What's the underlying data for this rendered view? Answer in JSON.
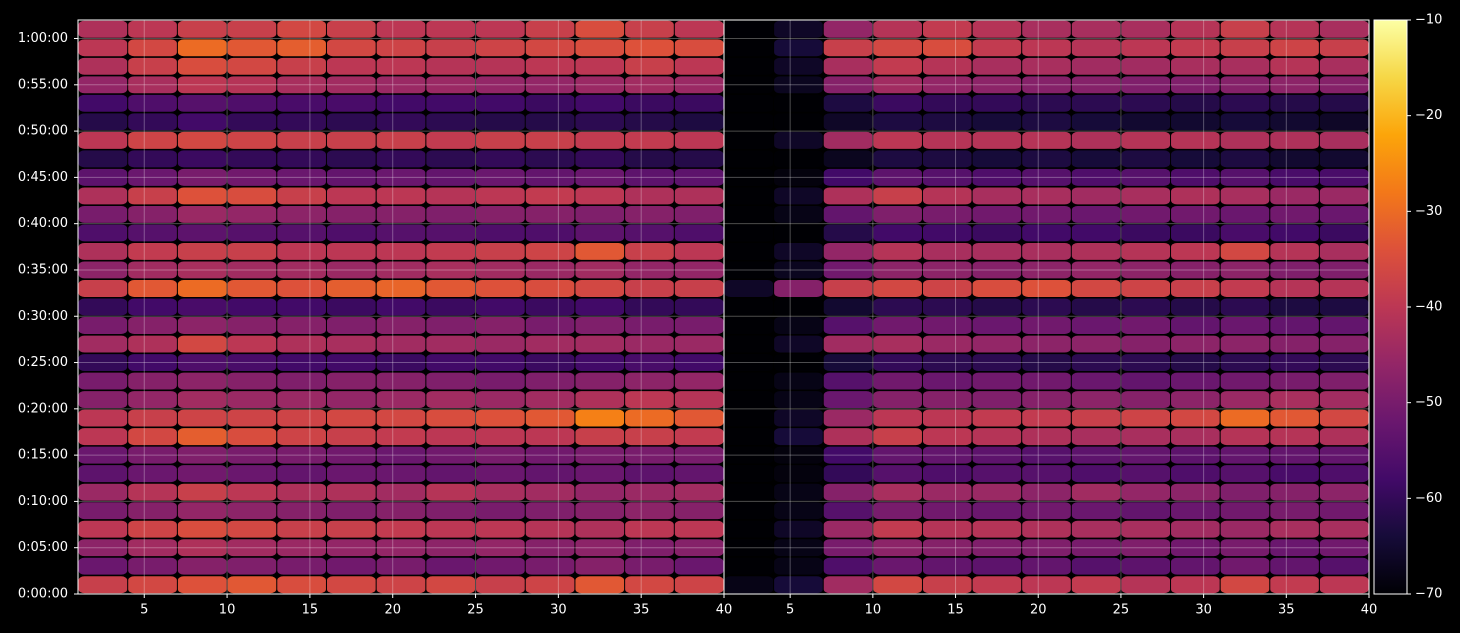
{
  "chart_data": {
    "type": "heatmap",
    "colormap": "inferno",
    "grid": true,
    "ylim": [
      0,
      3720
    ],
    "yticks": [
      {
        "value": 0,
        "label": "0:00:00"
      },
      {
        "value": 300,
        "label": "0:05:00"
      },
      {
        "value": 600,
        "label": "0:10:00"
      },
      {
        "value": 900,
        "label": "0:15:00"
      },
      {
        "value": 1200,
        "label": "0:20:00"
      },
      {
        "value": 1500,
        "label": "0:25:00"
      },
      {
        "value": 1800,
        "label": "0:30:00"
      },
      {
        "value": 2100,
        "label": "0:35:00"
      },
      {
        "value": 2400,
        "label": "0:40:00"
      },
      {
        "value": 2700,
        "label": "0:45:00"
      },
      {
        "value": 3000,
        "label": "0:50:00"
      },
      {
        "value": 3300,
        "label": "0:55:00"
      },
      {
        "value": 3600,
        "label": "1:00:00"
      }
    ],
    "y_edges": [
      0,
      120,
      240,
      360,
      480,
      600,
      720,
      840,
      960,
      1080,
      1200,
      1320,
      1440,
      1560,
      1680,
      1800,
      1920,
      2040,
      2160,
      2280,
      2400,
      2520,
      2640,
      2760,
      2880,
      3000,
      3120,
      3240,
      3360,
      3480,
      3600,
      3720
    ],
    "clim": [
      -70,
      -10
    ],
    "cticks": [
      {
        "value": -70,
        "label": "−70"
      },
      {
        "value": -60,
        "label": "−60"
      },
      {
        "value": -50,
        "label": "−50"
      },
      {
        "value": -40,
        "label": "−40"
      },
      {
        "value": -30,
        "label": "−30"
      },
      {
        "value": -20,
        "label": "−20"
      },
      {
        "value": -10,
        "label": "−10"
      }
    ],
    "panels": [
      {
        "xlim": [
          1,
          40
        ],
        "xticks": [
          5,
          10,
          15,
          20,
          25,
          30,
          35,
          40
        ],
        "x_edges": [
          1,
          4,
          7,
          10,
          13,
          16,
          19,
          22,
          25,
          28,
          31,
          34,
          37,
          40
        ],
        "values": [
          [
            -38,
            -36,
            -34,
            -33,
            -35,
            -36,
            -37,
            -36,
            -38,
            -37,
            -33,
            -36,
            -37
          ],
          [
            -52,
            -50,
            -48,
            -49,
            -50,
            -51,
            -50,
            -52,
            -51,
            -50,
            -48,
            -50,
            -52
          ],
          [
            -47,
            -44,
            -42,
            -44,
            -45,
            -46,
            -46,
            -47,
            -46,
            -48,
            -47,
            -49,
            -48
          ],
          [
            -40,
            -37,
            -35,
            -36,
            -38,
            -38,
            -39,
            -40,
            -40,
            -41,
            -42,
            -40,
            -40
          ],
          [
            -50,
            -48,
            -46,
            -47,
            -48,
            -49,
            -48,
            -49,
            -50,
            -49,
            -48,
            -47,
            -48
          ],
          [
            -45,
            -41,
            -38,
            -40,
            -42,
            -42,
            -44,
            -41,
            -43,
            -44,
            -46,
            -45,
            -44
          ],
          [
            -54,
            -52,
            -51,
            -52,
            -53,
            -52,
            -52,
            -53,
            -52,
            -53,
            -52,
            -54,
            -53
          ],
          [
            -52,
            -50,
            -49,
            -50,
            -50,
            -51,
            -52,
            -51,
            -50,
            -51,
            -50,
            -50,
            -50
          ],
          [
            -40,
            -36,
            -32,
            -35,
            -37,
            -38,
            -39,
            -40,
            -40,
            -40,
            -38,
            -38,
            -39
          ],
          [
            -40,
            -38,
            -37,
            -37,
            -37,
            -36,
            -36,
            -35,
            -34,
            -33,
            -27,
            -30,
            -33
          ],
          [
            -48,
            -46,
            -44,
            -45,
            -45,
            -46,
            -45,
            -44,
            -45,
            -44,
            -42,
            -40,
            -41
          ],
          [
            -50,
            -48,
            -47,
            -48,
            -49,
            -48,
            -48,
            -49,
            -50,
            -49,
            -48,
            -47,
            -46
          ],
          [
            -60,
            -58,
            -56,
            -57,
            -58,
            -58,
            -59,
            -58,
            -58,
            -59,
            -58,
            -57,
            -58
          ],
          [
            -44,
            -42,
            -36,
            -40,
            -42,
            -43,
            -44,
            -44,
            -45,
            -44,
            -44,
            -45,
            -45
          ],
          [
            -50,
            -48,
            -47,
            -48,
            -48,
            -49,
            -48,
            -49,
            -48,
            -50,
            -49,
            -50,
            -50
          ],
          [
            -60,
            -58,
            -57,
            -58,
            -58,
            -59,
            -58,
            -59,
            -58,
            -59,
            -58,
            -60,
            -60
          ],
          [
            -38,
            -33,
            -30,
            -33,
            -34,
            -32,
            -31,
            -33,
            -34,
            -35,
            -36,
            -38,
            -38
          ],
          [
            -47,
            -44,
            -43,
            -44,
            -44,
            -45,
            -44,
            -43,
            -44,
            -45,
            -44,
            -46,
            -46
          ],
          [
            -42,
            -39,
            -38,
            -38,
            -40,
            -40,
            -40,
            -39,
            -38,
            -37,
            -33,
            -38,
            -40
          ],
          [
            -56,
            -55,
            -54,
            -55,
            -55,
            -56,
            -55,
            -55,
            -56,
            -56,
            -54,
            -55,
            -56
          ],
          [
            -50,
            -48,
            -45,
            -46,
            -47,
            -48,
            -48,
            -49,
            -48,
            -48,
            -49,
            -48,
            -49
          ],
          [
            -42,
            -38,
            -34,
            -35,
            -38,
            -40,
            -40,
            -41,
            -40,
            -39,
            -40,
            -42,
            -42
          ],
          [
            -54,
            -52,
            -50,
            -51,
            -52,
            -53,
            -52,
            -53,
            -52,
            -53,
            -52,
            -54,
            -54
          ],
          [
            -62,
            -60,
            -59,
            -60,
            -60,
            -61,
            -60,
            -61,
            -60,
            -61,
            -60,
            -62,
            -62
          ],
          [
            -40,
            -37,
            -36,
            -37,
            -38,
            -38,
            -38,
            -39,
            -38,
            -38,
            -39,
            -39,
            -40
          ],
          [
            -62,
            -60,
            -58,
            -60,
            -60,
            -61,
            -60,
            -61,
            -62,
            -62,
            -61,
            -62,
            -63
          ],
          [
            -58,
            -56,
            -55,
            -56,
            -57,
            -57,
            -58,
            -58,
            -58,
            -59,
            -58,
            -59,
            -59
          ],
          [
            -46,
            -43,
            -40,
            -41,
            -43,
            -44,
            -45,
            -45,
            -46,
            -46,
            -45,
            -44,
            -45
          ],
          [
            -42,
            -38,
            -35,
            -36,
            -38,
            -40,
            -40,
            -41,
            -41,
            -40,
            -40,
            -38,
            -40
          ],
          [
            -40,
            -36,
            -30,
            -33,
            -32,
            -36,
            -37,
            -38,
            -37,
            -36,
            -35,
            -34,
            -35
          ],
          [
            -42,
            -40,
            -38,
            -38,
            -36,
            -38,
            -40,
            -40,
            -40,
            -38,
            -35,
            -38,
            -40
          ]
        ]
      },
      {
        "xlim": [
          1,
          40
        ],
        "xticks": [
          5,
          10,
          15,
          20,
          25,
          30,
          35,
          40
        ],
        "x_edges": [
          1,
          4,
          7,
          10,
          13,
          16,
          19,
          22,
          25,
          28,
          31,
          34,
          37,
          40
        ],
        "values": [
          [
            -68,
            -64,
            -44,
            -36,
            -38,
            -39,
            -40,
            -39,
            -41,
            -40,
            -36,
            -39,
            -40
          ],
          [
            -70,
            -68,
            -56,
            -52,
            -53,
            -54,
            -53,
            -55,
            -54,
            -53,
            -51,
            -53,
            -55
          ],
          [
            -70,
            -68,
            -50,
            -47,
            -48,
            -49,
            -49,
            -50,
            -49,
            -51,
            -50,
            -52,
            -51
          ],
          [
            -70,
            -66,
            -45,
            -39,
            -41,
            -41,
            -42,
            -43,
            -43,
            -44,
            -45,
            -43,
            -43
          ],
          [
            -70,
            -68,
            -55,
            -50,
            -51,
            -52,
            -51,
            -52,
            -53,
            -52,
            -51,
            -50,
            -51
          ],
          [
            -70,
            -68,
            -48,
            -43,
            -45,
            -45,
            -47,
            -44,
            -46,
            -47,
            -49,
            -48,
            -47
          ],
          [
            -70,
            -69,
            -60,
            -55,
            -56,
            -55,
            -55,
            -56,
            -55,
            -56,
            -55,
            -57,
            -56
          ],
          [
            -70,
            -69,
            -58,
            -53,
            -53,
            -54,
            -55,
            -54,
            -53,
            -54,
            -53,
            -53,
            -53
          ],
          [
            -70,
            -64,
            -42,
            -38,
            -40,
            -41,
            -42,
            -43,
            -43,
            -43,
            -41,
            -41,
            -42
          ],
          [
            -70,
            -66,
            -45,
            -40,
            -40,
            -39,
            -39,
            -38,
            -37,
            -36,
            -30,
            -33,
            -36
          ],
          [
            -70,
            -68,
            -52,
            -48,
            -48,
            -49,
            -48,
            -47,
            -48,
            -47,
            -45,
            -43,
            -44
          ],
          [
            -70,
            -68,
            -55,
            -51,
            -52,
            -51,
            -51,
            -52,
            -53,
            -52,
            -51,
            -50,
            -49
          ],
          [
            -70,
            -70,
            -64,
            -60,
            -61,
            -61,
            -62,
            -61,
            -61,
            -62,
            -61,
            -60,
            -61
          ],
          [
            -70,
            -66,
            -44,
            -43,
            -45,
            -46,
            -47,
            -47,
            -48,
            -47,
            -47,
            -48,
            -48
          ],
          [
            -70,
            -68,
            -55,
            -51,
            -51,
            -52,
            -51,
            -52,
            -51,
            -53,
            -52,
            -53,
            -53
          ],
          [
            -70,
            -70,
            -65,
            -61,
            -61,
            -62,
            -61,
            -62,
            -61,
            -62,
            -61,
            -63,
            -63
          ],
          [
            -66,
            -48,
            -38,
            -36,
            -37,
            -35,
            -34,
            -36,
            -37,
            -38,
            -39,
            -41,
            -41
          ],
          [
            -70,
            -67,
            -51,
            -47,
            -47,
            -48,
            -47,
            -46,
            -47,
            -48,
            -47,
            -49,
            -49
          ],
          [
            -70,
            -66,
            -46,
            -41,
            -43,
            -43,
            -43,
            -42,
            -41,
            -40,
            -36,
            -41,
            -43
          ],
          [
            -70,
            -70,
            -62,
            -58,
            -58,
            -59,
            -58,
            -58,
            -59,
            -59,
            -57,
            -58,
            -59
          ],
          [
            -70,
            -68,
            -53,
            -49,
            -50,
            -51,
            -51,
            -52,
            -51,
            -51,
            -52,
            -51,
            -52
          ],
          [
            -70,
            -66,
            -42,
            -38,
            -41,
            -43,
            -43,
            -44,
            -43,
            -42,
            -43,
            -45,
            -45
          ],
          [
            -70,
            -69,
            -58,
            -54,
            -55,
            -56,
            -55,
            -56,
            -55,
            -56,
            -55,
            -57,
            -57
          ],
          [
            -70,
            -70,
            -67,
            -63,
            -63,
            -64,
            -63,
            -64,
            -63,
            -64,
            -63,
            -65,
            -65
          ],
          [
            -70,
            -66,
            -44,
            -40,
            -41,
            -41,
            -41,
            -42,
            -41,
            -41,
            -42,
            -42,
            -43
          ],
          [
            -70,
            -70,
            -66,
            -63,
            -63,
            -64,
            -63,
            -64,
            -65,
            -65,
            -64,
            -65,
            -66
          ],
          [
            -70,
            -70,
            -63,
            -59,
            -60,
            -60,
            -61,
            -61,
            -61,
            -62,
            -61,
            -62,
            -62
          ],
          [
            -70,
            -67,
            -48,
            -44,
            -46,
            -47,
            -48,
            -48,
            -49,
            -49,
            -48,
            -47,
            -48
          ],
          [
            -70,
            -66,
            -43,
            -39,
            -41,
            -43,
            -43,
            -44,
            -44,
            -43,
            -43,
            -41,
            -43
          ],
          [
            -70,
            -64,
            -38,
            -36,
            -35,
            -39,
            -40,
            -41,
            -40,
            -39,
            -38,
            -37,
            -38
          ],
          [
            -70,
            -66,
            -46,
            -41,
            -39,
            -41,
            -43,
            -43,
            -43,
            -41,
            -38,
            -41,
            -43
          ]
        ]
      }
    ]
  }
}
